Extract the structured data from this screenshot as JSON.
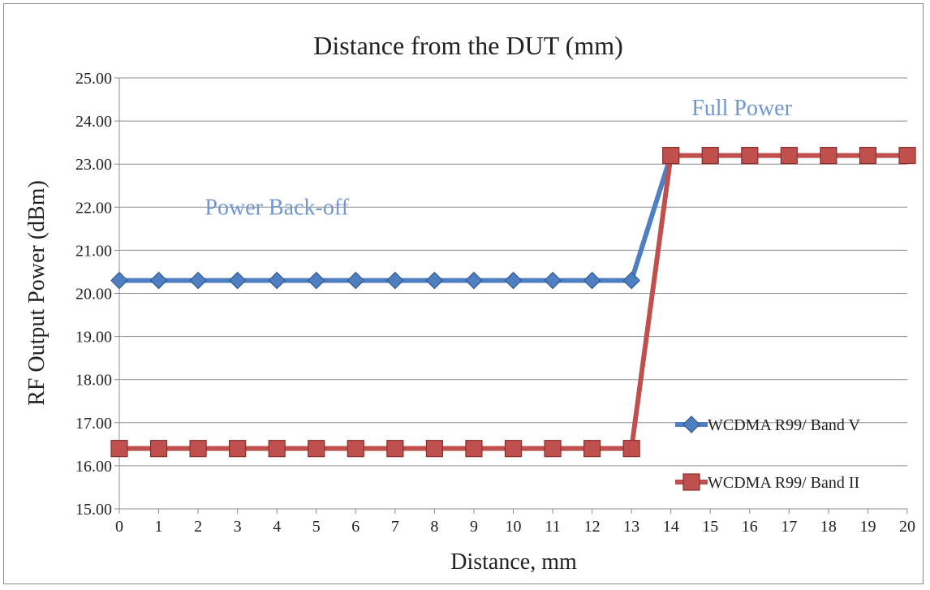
{
  "chart_data": {
    "type": "line",
    "title": "Distance from the DUT (mm)",
    "xlabel": "Distance, mm",
    "ylabel": "RF Output Power (dBm)",
    "x": [
      0,
      1,
      2,
      3,
      4,
      5,
      6,
      7,
      8,
      9,
      10,
      11,
      12,
      13,
      14,
      15,
      16,
      17,
      18,
      19,
      20
    ],
    "xlim": [
      0,
      20
    ],
    "ylim": [
      15,
      25
    ],
    "yticks": [
      "15.00",
      "16.00",
      "17.00",
      "18.00",
      "19.00",
      "20.00",
      "21.00",
      "22.00",
      "23.00",
      "24.00",
      "25.00"
    ],
    "xticks": [
      "0",
      "1",
      "2",
      "3",
      "4",
      "5",
      "6",
      "7",
      "8",
      "9",
      "10",
      "11",
      "12",
      "13",
      "14",
      "15",
      "16",
      "17",
      "18",
      "19",
      "20"
    ],
    "grid": true,
    "legend_position": "right",
    "annotations": [
      {
        "text": "Power Back-off",
        "x": 4,
        "y": 22.0
      },
      {
        "text": "Full Power",
        "x": 15.8,
        "y": 24.3
      }
    ],
    "annotation_color": "#7098cf",
    "series": [
      {
        "name": "WCDMA R99/ Band V",
        "color": "#4f7fc0",
        "marker": "diamond",
        "x": [
          0,
          1,
          2,
          3,
          4,
          5,
          6,
          7,
          8,
          9,
          10,
          11,
          12,
          13,
          14
        ],
        "values": [
          20.3,
          20.3,
          20.3,
          20.3,
          20.3,
          20.3,
          20.3,
          20.3,
          20.3,
          20.3,
          20.3,
          20.3,
          20.3,
          20.3,
          23.2
        ]
      },
      {
        "name": "WCDMA R99/ Band II",
        "color": "#c0504d",
        "marker": "square",
        "x": [
          0,
          1,
          2,
          3,
          4,
          5,
          6,
          7,
          8,
          9,
          10,
          11,
          12,
          13,
          14,
          15,
          16,
          17,
          18,
          19,
          20
        ],
        "values": [
          16.4,
          16.4,
          16.4,
          16.4,
          16.4,
          16.4,
          16.4,
          16.4,
          16.4,
          16.4,
          16.4,
          16.4,
          16.4,
          16.4,
          23.2,
          23.2,
          23.2,
          23.2,
          23.2,
          23.2,
          23.2
        ]
      }
    ]
  }
}
